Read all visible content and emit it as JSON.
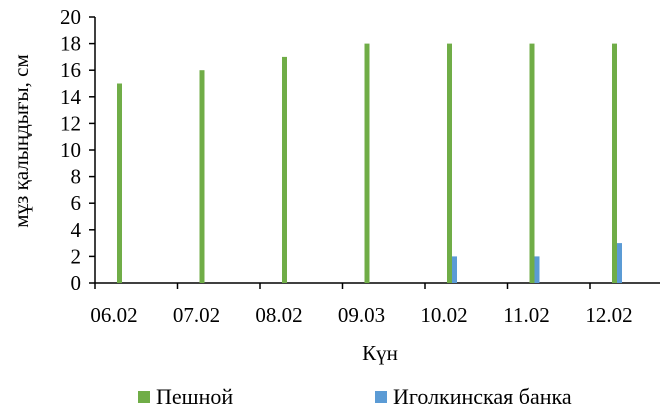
{
  "chart_data": {
    "type": "bar",
    "categories": [
      "06.02",
      "07.02",
      "08.02",
      "09.03",
      "10.02",
      "11.02",
      "12.02"
    ],
    "series": [
      {
        "name": "Пешной",
        "values": [
          15,
          16,
          17,
          18,
          18,
          18,
          18
        ],
        "color": "#70ad47"
      },
      {
        "name": "Иголкинская банка",
        "values": [
          0,
          0,
          0,
          0,
          2,
          2,
          3
        ],
        "color": "#5b9bd5"
      }
    ],
    "xlabel": "Күн",
    "ylabel": "мұз қалыңдығы, см",
    "ylim": [
      0,
      20
    ],
    "yticks": [
      0,
      2,
      4,
      6,
      8,
      10,
      12,
      14,
      16,
      18,
      20
    ],
    "grid": false,
    "legend_position": "bottom"
  }
}
